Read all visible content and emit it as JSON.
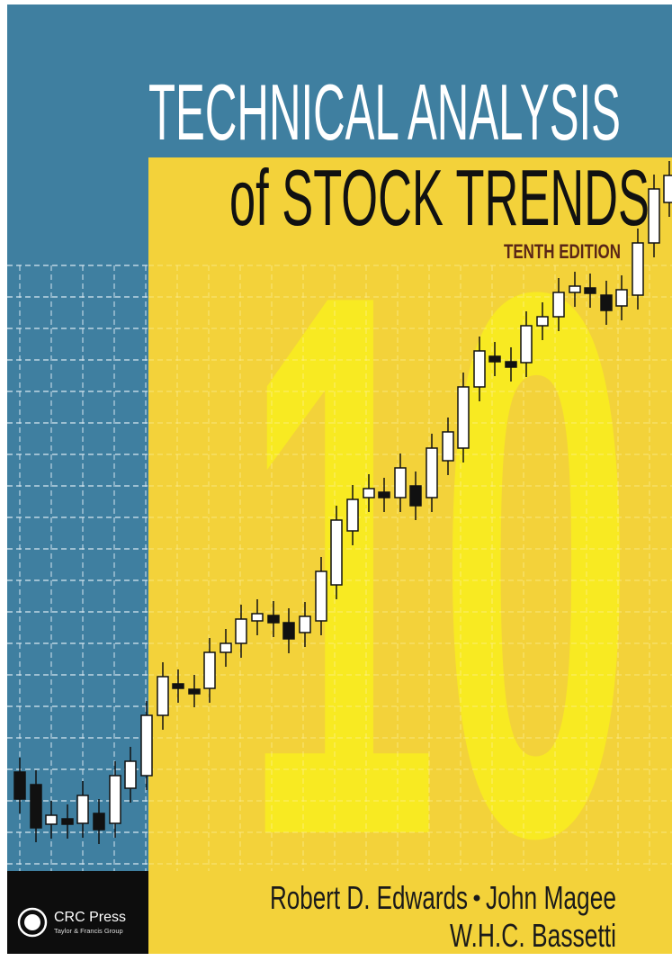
{
  "cover": {
    "title_line1": "TECHNICAL ANALYSIS",
    "title_line2": "of STOCK TRENDS",
    "edition": "TENTH EDITION",
    "edition_numeral": "10",
    "authors": [
      "Robert D. Edwards",
      "John Magee",
      "W.H.C. Bassetti"
    ],
    "publisher": {
      "name": "CRC Press",
      "group": "Taylor & Francis Group"
    }
  }
}
